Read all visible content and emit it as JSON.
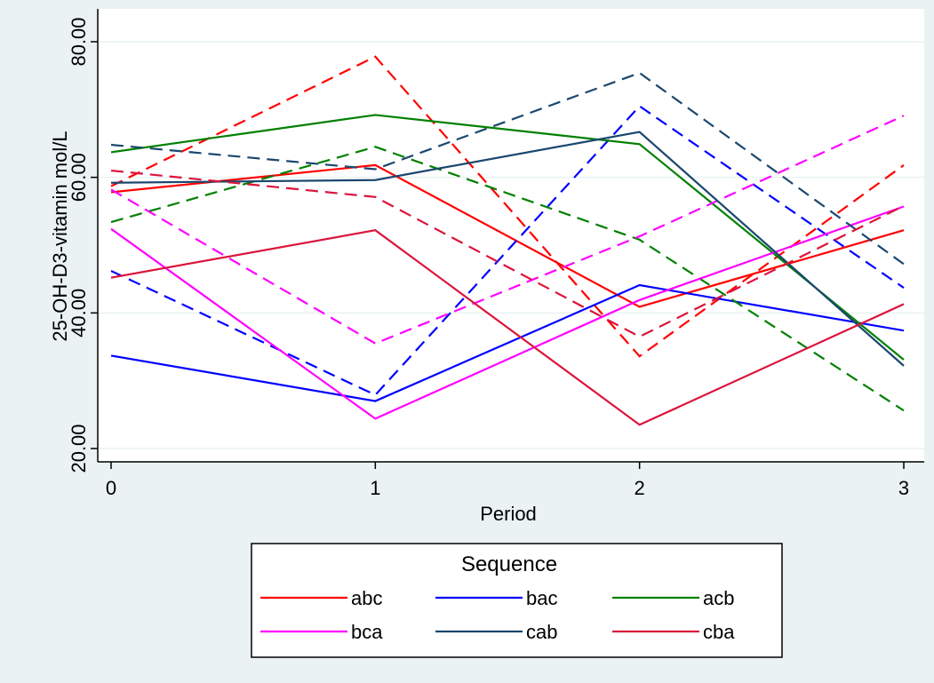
{
  "chart_data": {
    "type": "line",
    "title": "",
    "xlabel": "Period",
    "ylabel": "25-OH-D3-vitamin mol/L",
    "x": [
      0,
      1,
      2,
      3
    ],
    "xticks": [
      "0",
      "1",
      "2",
      "3"
    ],
    "yticks": [
      "20.00",
      "40.00",
      "60.00",
      "80.00"
    ],
    "ylim": [
      20,
      80
    ],
    "xlim": [
      0,
      3
    ],
    "grid": "horizontal",
    "legend": {
      "title": "Sequence",
      "placement": "bottom",
      "entries": [
        {
          "label": "abc",
          "color": "#ff0000"
        },
        {
          "label": "bac",
          "color": "#0000ff"
        },
        {
          "label": "acb",
          "color": "#008000"
        },
        {
          "label": "bca",
          "color": "#ff00ff"
        },
        {
          "label": "cab",
          "color": "#1a476f"
        },
        {
          "label": "cba",
          "color": "#dc143c"
        }
      ]
    },
    "series": [
      {
        "name": "abc",
        "color": "#ff0000",
        "dash": false,
        "values": [
          57.8,
          61.8,
          40.9,
          52.2
        ]
      },
      {
        "name": "abc",
        "color": "#ff0000",
        "dash": true,
        "values": [
          58.7,
          77.8,
          33.6,
          61.8
        ]
      },
      {
        "name": "bac",
        "color": "#0000ff",
        "dash": false,
        "values": [
          33.7,
          27.0,
          44.1,
          37.4
        ]
      },
      {
        "name": "bac",
        "color": "#0000ff",
        "dash": true,
        "values": [
          46.2,
          27.9,
          70.5,
          43.7
        ]
      },
      {
        "name": "acb",
        "color": "#008000",
        "dash": false,
        "values": [
          63.7,
          69.2,
          64.9,
          33.1
        ]
      },
      {
        "name": "acb",
        "color": "#008000",
        "dash": true,
        "values": [
          53.4,
          64.5,
          50.8,
          25.6
        ]
      },
      {
        "name": "bca",
        "color": "#ff00ff",
        "dash": false,
        "values": [
          52.4,
          24.4,
          41.9,
          55.7
        ]
      },
      {
        "name": "bca",
        "color": "#ff00ff",
        "dash": true,
        "values": [
          58.2,
          35.5,
          51.3,
          69.1
        ]
      },
      {
        "name": "cab",
        "color": "#1a476f",
        "dash": false,
        "values": [
          59.2,
          59.6,
          66.7,
          32.2
        ]
      },
      {
        "name": "cab",
        "color": "#1a476f",
        "dash": true,
        "values": [
          64.8,
          61.2,
          75.4,
          47.2
        ]
      },
      {
        "name": "cba",
        "color": "#dc143c",
        "dash": false,
        "values": [
          45.2,
          52.2,
          23.5,
          41.3
        ]
      },
      {
        "name": "cba",
        "color": "#dc143c",
        "dash": true,
        "values": [
          61.0,
          57.1,
          36.5,
          55.8
        ]
      }
    ]
  }
}
